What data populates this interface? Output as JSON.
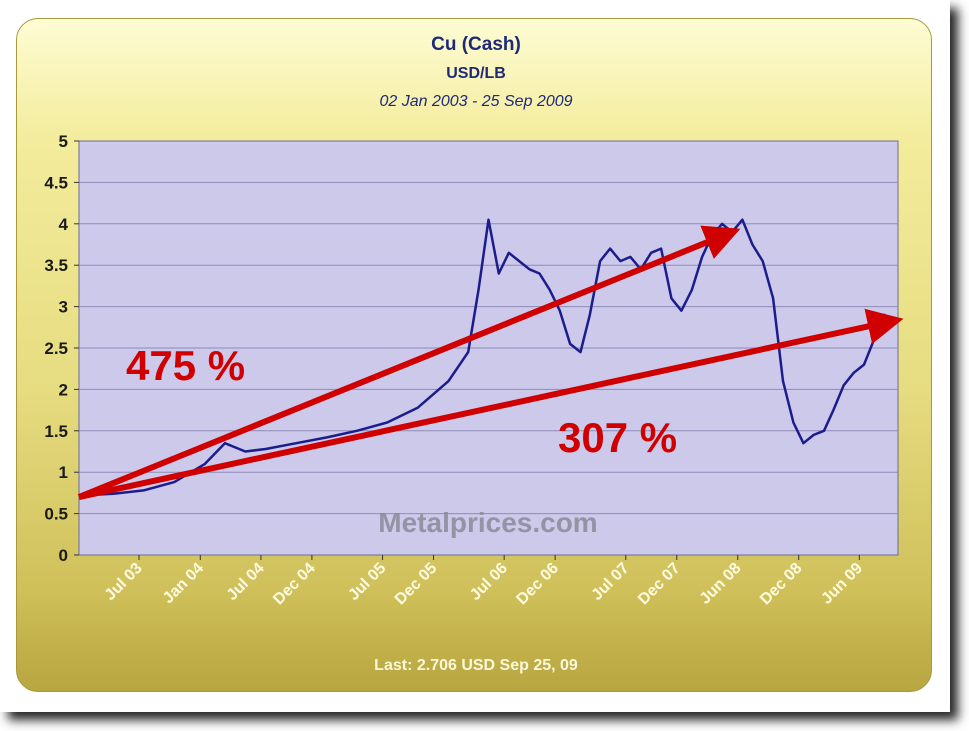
{
  "chart_data": {
    "type": "line",
    "title": "Cu (Cash)",
    "unit": "USD/LB",
    "date_range": "02 Jan 2003 - 25 Sep 2009",
    "ylim": [
      0,
      5
    ],
    "yticks": [
      "0",
      "0.5",
      "1",
      "1.5",
      "2",
      "2.5",
      "3",
      "3.5",
      "4",
      "4.5",
      "5"
    ],
    "xticks": [
      "Jul 03",
      "Jan 04",
      "Jul 04",
      "Dec 04",
      "Jul 05",
      "Dec 05",
      "Jul 06",
      "Dec 06",
      "Jul 07",
      "Dec 07",
      "Jun 08",
      "Dec 08",
      "Jun 09"
    ],
    "grid": true,
    "watermark": "Metalprices.com",
    "footer": "Last: 2.706 USD Sep 25, 09",
    "series": [
      {
        "color": "#1c1c8c",
        "x": [
          "2003-01",
          "2003-04",
          "2003-07",
          "2003-10",
          "2004-01",
          "2004-03",
          "2004-05",
          "2004-07",
          "2004-10",
          "2005-01",
          "2005-04",
          "2005-07",
          "2005-10",
          "2006-01",
          "2006-03",
          "2006-04",
          "2006-05",
          "2006-06",
          "2006-07",
          "2006-08",
          "2006-09",
          "2006-10",
          "2006-11",
          "2006-12",
          "2007-01",
          "2007-02",
          "2007-03",
          "2007-04",
          "2007-05",
          "2007-06",
          "2007-07",
          "2007-08",
          "2007-09",
          "2007-10",
          "2007-11",
          "2007-12",
          "2008-01",
          "2008-02",
          "2008-03",
          "2008-04",
          "2008-05",
          "2008-06",
          "2008-07",
          "2008-08",
          "2008-09",
          "2008-10",
          "2008-11",
          "2008-12",
          "2009-01",
          "2009-02",
          "2009-03",
          "2009-04",
          "2009-05",
          "2009-06",
          "2009-07",
          "2009-08",
          "2009-09"
        ],
        "values": [
          0.72,
          0.74,
          0.78,
          0.88,
          1.1,
          1.35,
          1.25,
          1.28,
          1.35,
          1.42,
          1.5,
          1.6,
          1.78,
          2.1,
          2.45,
          3.2,
          4.05,
          3.4,
          3.65,
          3.55,
          3.45,
          3.4,
          3.2,
          2.95,
          2.55,
          2.45,
          2.9,
          3.55,
          3.7,
          3.55,
          3.6,
          3.45,
          3.65,
          3.7,
          3.1,
          2.95,
          3.2,
          3.6,
          3.85,
          4.0,
          3.9,
          4.05,
          3.75,
          3.55,
          3.1,
          2.1,
          1.6,
          1.35,
          1.45,
          1.5,
          1.75,
          2.05,
          2.2,
          2.3,
          2.6,
          2.9,
          2.8
        ]
      }
    ],
    "annotations": [
      {
        "text": "475 %",
        "color": "#d00000",
        "from": [
          "2003-01",
          0.7
        ],
        "to": [
          "2008-05",
          3.9
        ]
      },
      {
        "text": "307 %",
        "color": "#d00000",
        "from": [
          "2003-01",
          0.7
        ],
        "to": [
          "2009-09",
          2.83
        ]
      }
    ]
  }
}
